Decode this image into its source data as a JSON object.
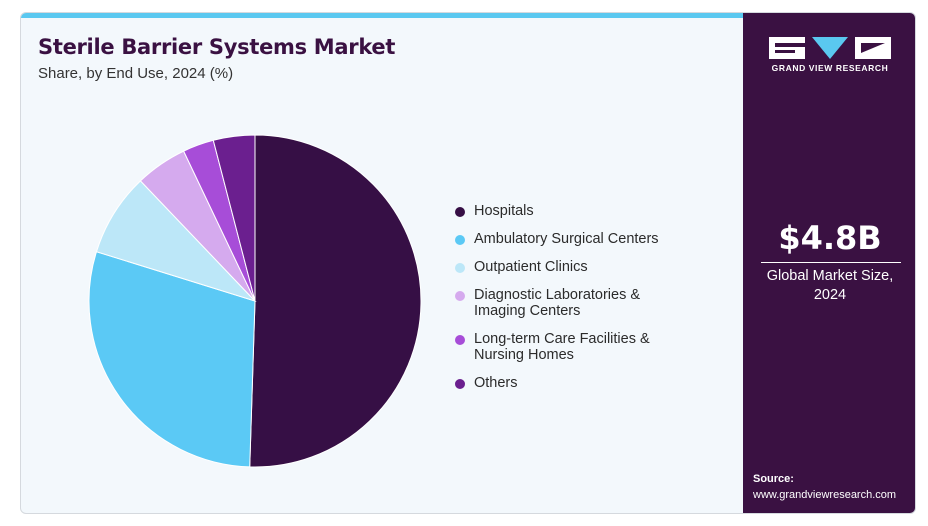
{
  "header": {
    "title": "Sterile Barrier Systems Market",
    "subtitle": "Share, by End Use, 2024 (%)"
  },
  "chart_data": {
    "type": "pie",
    "title": "Sterile Barrier Systems Market",
    "subtitle": "Share, by End Use, 2024 (%)",
    "categories": [
      "Hospitals",
      "Ambulatory Surgical Centers",
      "Outpatient Clinics",
      "Diagnostic Laboratories &\nImaging Centers",
      "Long-term Care Facilities &\nNursing Homes",
      "Others"
    ],
    "values": [
      50.0,
      29.0,
      8.0,
      5.0,
      3.0,
      4.0
    ],
    "colors": [
      "#360f45",
      "#5bc9f5",
      "#bce7f8",
      "#d5aaee",
      "#a74dd8",
      "#6b1f8f"
    ],
    "legend_position": "right"
  },
  "sidebar": {
    "brand": "GRAND VIEW RESEARCH",
    "market_value": "$4.8B",
    "market_label": "Global Market Size,\n2024",
    "source_label": "Source:",
    "source_url": "www.grandviewresearch.com"
  }
}
